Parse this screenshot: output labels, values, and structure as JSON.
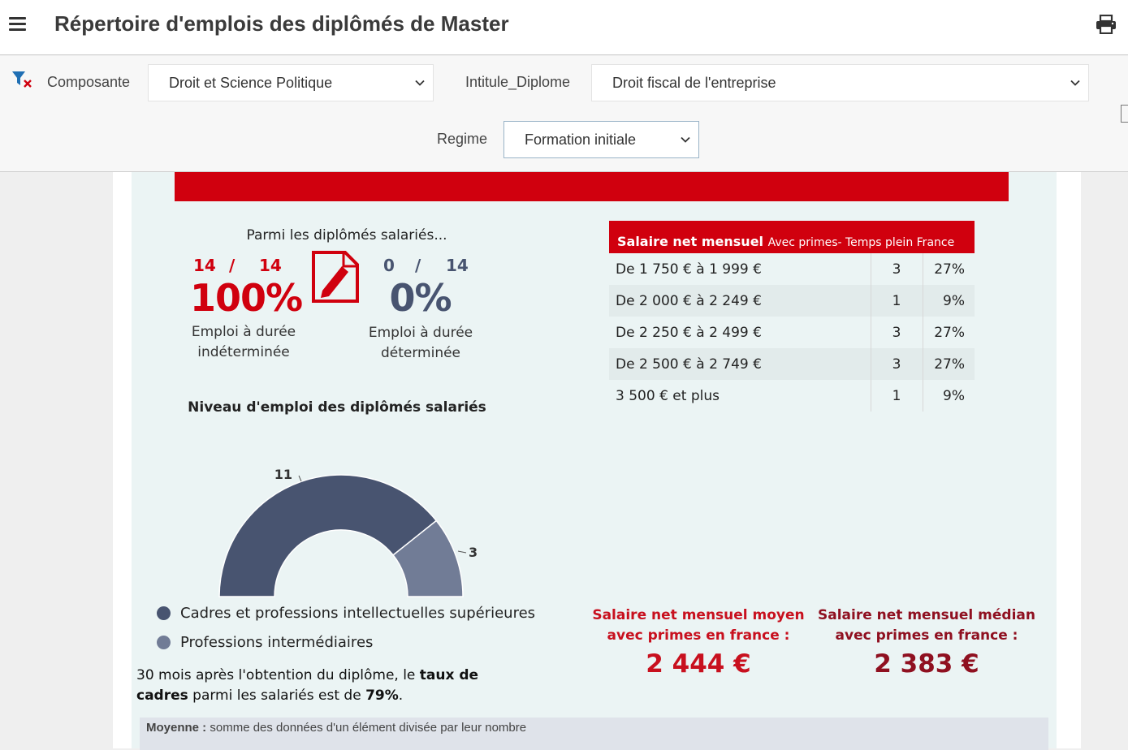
{
  "header": {
    "title": "Répertoire d'emplois des diplômés de Master",
    "menu_icon": "hamburger-menu-icon",
    "print_icon": "printer-icon"
  },
  "filters": {
    "clear_icon": "filter-clear-icon",
    "composante": {
      "label": "Composante",
      "value": "Droit et Science Politique"
    },
    "intitule": {
      "label": "Intitule_Diplome",
      "value": "Droit fiscal de l'entreprise"
    },
    "regime": {
      "label": "Regime",
      "value": "Formation initiale"
    }
  },
  "contracts": {
    "heading": "Parmi les diplômés salariés...",
    "cdi": {
      "count": "14",
      "sep": "/",
      "total": "14",
      "percent": "100%",
      "label_line1": "Emploi à durée",
      "label_line2": "indéterminée"
    },
    "cdd": {
      "count": "0",
      "sep": "/",
      "total": "14",
      "percent": "0%",
      "label_line1": "Emploi à durée",
      "label_line2": "déterminée"
    },
    "icon": "contract-pen-icon"
  },
  "employment_level": {
    "heading": "Niveau d'emploi des diplômés salariés",
    "label_a": "11",
    "label_b": "3",
    "legend_a": "Cadres et professions intellectuelles supérieures",
    "legend_b": "Professions intermédiaires"
  },
  "chart_data": {
    "type": "pie",
    "subtype": "semi-donut",
    "title": "Niveau d'emploi des diplômés salariés",
    "series": [
      {
        "name": "Cadres et professions intellectuelles supérieures",
        "value": 11,
        "color": "#485470"
      },
      {
        "name": "Professions intermédiaires",
        "value": 3,
        "color": "#717c96"
      }
    ]
  },
  "cadres_note": {
    "p1": "30 mois après l'obtention du diplôme, le ",
    "b1": "taux de cadres",
    "p2": " parmi les salariés ",
    "p3": "est de ",
    "b2": "79%",
    "p4": "."
  },
  "salary_table": {
    "title_bold": "Salaire net mensuel",
    "title_small": "Avec primes- Temps plein France",
    "rows": [
      {
        "range": "De 1 750 € à 1 999 €",
        "n": "3",
        "pct": "27%"
      },
      {
        "range": "De 2 000 € à 2 249 €",
        "n": "1",
        "pct": "9%"
      },
      {
        "range": "De 2 250 € à 2 499 €",
        "n": "3",
        "pct": "27%"
      },
      {
        "range": "De 2 500 € à 2 749 €",
        "n": "3",
        "pct": "27%"
      },
      {
        "range": "3 500 € et plus",
        "n": "1",
        "pct": "9%"
      }
    ]
  },
  "salary_stats": {
    "mean_line1": "Salaire net mensuel moyen",
    "mean_line2": "avec primes en france :",
    "mean_value": "2 444 €",
    "median_line1": "Salaire net mensuel médian",
    "median_line2": "avec primes en france :",
    "median_value": "2 383 €"
  },
  "definitions": {
    "moyenne_term": "Moyenne :",
    "moyenne_text": " somme des données d'un élément divisée par leur nombre"
  },
  "colors": {
    "brand_red": "#d0000e",
    "stat_mean": "#c8101e",
    "stat_median": "#8f1020",
    "dark_slate": "#485470",
    "light_slate": "#717c96"
  }
}
